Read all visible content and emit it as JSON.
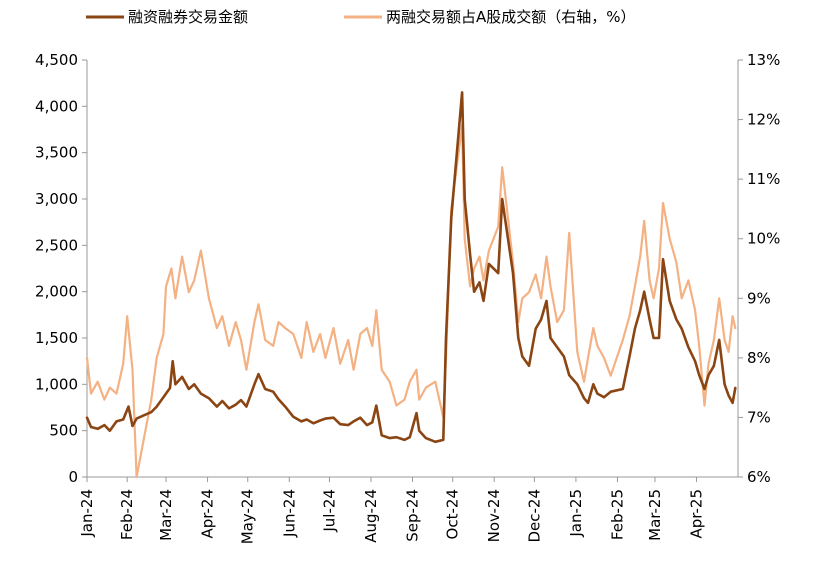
{
  "chart_data": {
    "type": "line",
    "title": "",
    "legend_position": "top",
    "series": [
      {
        "name": "融资融券交易金额",
        "axis": "left",
        "color": "#8B4513",
        "points": [
          [
            "2024-01-02",
            640
          ],
          [
            "2024-01-05",
            540
          ],
          [
            "2024-01-10",
            520
          ],
          [
            "2024-01-15",
            560
          ],
          [
            "2024-01-19",
            500
          ],
          [
            "2024-01-24",
            600
          ],
          [
            "2024-01-29",
            620
          ],
          [
            "2024-02-02",
            760
          ],
          [
            "2024-02-05",
            550
          ],
          [
            "2024-02-08",
            630
          ],
          [
            "2024-02-19",
            700
          ],
          [
            "2024-02-23",
            760
          ],
          [
            "2024-02-28",
            860
          ],
          [
            "2024-03-04",
            960
          ],
          [
            "2024-03-06",
            1250
          ],
          [
            "2024-03-08",
            1000
          ],
          [
            "2024-03-13",
            1080
          ],
          [
            "2024-03-18",
            950
          ],
          [
            "2024-03-22",
            1000
          ],
          [
            "2024-03-27",
            900
          ],
          [
            "2024-04-02",
            850
          ],
          [
            "2024-04-08",
            760
          ],
          [
            "2024-04-12",
            820
          ],
          [
            "2024-04-17",
            740
          ],
          [
            "2024-04-22",
            780
          ],
          [
            "2024-04-26",
            830
          ],
          [
            "2024-04-30",
            760
          ],
          [
            "2024-05-06",
            1000
          ],
          [
            "2024-05-09",
            1110
          ],
          [
            "2024-05-14",
            950
          ],
          [
            "2024-05-20",
            920
          ],
          [
            "2024-05-24",
            840
          ],
          [
            "2024-05-29",
            760
          ],
          [
            "2024-06-04",
            650
          ],
          [
            "2024-06-10",
            600
          ],
          [
            "2024-06-14",
            620
          ],
          [
            "2024-06-19",
            580
          ],
          [
            "2024-06-24",
            610
          ],
          [
            "2024-06-28",
            630
          ],
          [
            "2024-07-04",
            640
          ],
          [
            "2024-07-09",
            570
          ],
          [
            "2024-07-15",
            560
          ],
          [
            "2024-07-19",
            600
          ],
          [
            "2024-07-24",
            640
          ],
          [
            "2024-07-29",
            560
          ],
          [
            "2024-08-02",
            590
          ],
          [
            "2024-08-05",
            770
          ],
          [
            "2024-08-09",
            450
          ],
          [
            "2024-08-15",
            420
          ],
          [
            "2024-08-20",
            430
          ],
          [
            "2024-08-26",
            400
          ],
          [
            "2024-08-30",
            430
          ],
          [
            "2024-09-04",
            690
          ],
          [
            "2024-09-06",
            500
          ],
          [
            "2024-09-11",
            420
          ],
          [
            "2024-09-18",
            380
          ],
          [
            "2024-09-24",
            400
          ],
          [
            "2024-09-26",
            1500
          ],
          [
            "2024-09-30",
            2800
          ],
          [
            "2024-10-08",
            4150
          ],
          [
            "2024-10-10",
            3000
          ],
          [
            "2024-10-14",
            2400
          ],
          [
            "2024-10-17",
            2000
          ],
          [
            "2024-10-21",
            2100
          ],
          [
            "2024-10-24",
            1900
          ],
          [
            "2024-10-28",
            2300
          ],
          [
            "2024-11-04",
            2200
          ],
          [
            "2024-11-07",
            3000
          ],
          [
            "2024-11-11",
            2600
          ],
          [
            "2024-11-15",
            2200
          ],
          [
            "2024-11-19",
            1500
          ],
          [
            "2024-11-22",
            1300
          ],
          [
            "2024-11-27",
            1200
          ],
          [
            "2024-12-02",
            1600
          ],
          [
            "2024-12-06",
            1700
          ],
          [
            "2024-12-10",
            1900
          ],
          [
            "2024-12-13",
            1500
          ],
          [
            "2024-12-18",
            1400
          ],
          [
            "2024-12-23",
            1300
          ],
          [
            "2024-12-27",
            1100
          ],
          [
            "2025-01-02",
            1000
          ],
          [
            "2025-01-07",
            850
          ],
          [
            "2025-01-10",
            800
          ],
          [
            "2025-01-14",
            1000
          ],
          [
            "2025-01-17",
            900
          ],
          [
            "2025-01-22",
            860
          ],
          [
            "2025-01-27",
            920
          ],
          [
            "2025-02-05",
            950
          ],
          [
            "2025-02-10",
            1300
          ],
          [
            "2025-02-14",
            1600
          ],
          [
            "2025-02-18",
            1800
          ],
          [
            "2025-02-21",
            2000
          ],
          [
            "2025-02-25",
            1700
          ],
          [
            "2025-02-28",
            1500
          ],
          [
            "2025-03-04",
            1500
          ],
          [
            "2025-03-07",
            2350
          ],
          [
            "2025-03-12",
            1900
          ],
          [
            "2025-03-17",
            1700
          ],
          [
            "2025-03-21",
            1600
          ],
          [
            "2025-03-26",
            1400
          ],
          [
            "2025-03-31",
            1250
          ],
          [
            "2025-04-03",
            1100
          ],
          [
            "2025-04-07",
            950
          ],
          [
            "2025-04-10",
            1100
          ],
          [
            "2025-04-14",
            1200
          ],
          [
            "2025-04-18",
            1480
          ],
          [
            "2025-04-22",
            1000
          ],
          [
            "2025-04-25",
            880
          ],
          [
            "2025-04-28",
            800
          ],
          [
            "2025-04-30",
            960
          ]
        ]
      },
      {
        "name": "两融交易额占A股成交额（右轴，%）",
        "axis": "right",
        "color": "#F4B183",
        "points": [
          [
            "2024-01-02",
            8.0
          ],
          [
            "2024-01-05",
            7.4
          ],
          [
            "2024-01-10",
            7.6
          ],
          [
            "2024-01-15",
            7.3
          ],
          [
            "2024-01-19",
            7.5
          ],
          [
            "2024-01-24",
            7.4
          ],
          [
            "2024-01-29",
            7.9
          ],
          [
            "2024-02-01",
            8.7
          ],
          [
            "2024-02-05",
            7.8
          ],
          [
            "2024-02-08",
            6.0
          ],
          [
            "2024-02-19",
            7.3
          ],
          [
            "2024-02-23",
            8.0
          ],
          [
            "2024-02-28",
            8.4
          ],
          [
            "2024-03-01",
            9.2
          ],
          [
            "2024-03-05",
            9.5
          ],
          [
            "2024-03-08",
            9.0
          ],
          [
            "2024-03-13",
            9.7
          ],
          [
            "2024-03-18",
            9.1
          ],
          [
            "2024-03-22",
            9.3
          ],
          [
            "2024-03-27",
            9.8
          ],
          [
            "2024-04-02",
            9.0
          ],
          [
            "2024-04-08",
            8.5
          ],
          [
            "2024-04-12",
            8.7
          ],
          [
            "2024-04-17",
            8.2
          ],
          [
            "2024-04-22",
            8.6
          ],
          [
            "2024-04-26",
            8.3
          ],
          [
            "2024-04-30",
            7.8
          ],
          [
            "2024-05-06",
            8.6
          ],
          [
            "2024-05-09",
            8.9
          ],
          [
            "2024-05-14",
            8.3
          ],
          [
            "2024-05-20",
            8.2
          ],
          [
            "2024-05-24",
            8.6
          ],
          [
            "2024-05-29",
            8.5
          ],
          [
            "2024-06-04",
            8.4
          ],
          [
            "2024-06-10",
            8.0
          ],
          [
            "2024-06-14",
            8.6
          ],
          [
            "2024-06-19",
            8.1
          ],
          [
            "2024-06-24",
            8.4
          ],
          [
            "2024-06-28",
            8.0
          ],
          [
            "2024-07-04",
            8.5
          ],
          [
            "2024-07-09",
            7.9
          ],
          [
            "2024-07-15",
            8.3
          ],
          [
            "2024-07-19",
            7.8
          ],
          [
            "2024-07-24",
            8.4
          ],
          [
            "2024-07-29",
            8.5
          ],
          [
            "2024-08-02",
            8.2
          ],
          [
            "2024-08-05",
            8.8
          ],
          [
            "2024-08-09",
            7.8
          ],
          [
            "2024-08-15",
            7.6
          ],
          [
            "2024-08-20",
            7.2
          ],
          [
            "2024-08-26",
            7.3
          ],
          [
            "2024-08-30",
            7.6
          ],
          [
            "2024-09-04",
            7.8
          ],
          [
            "2024-09-06",
            7.3
          ],
          [
            "2024-09-11",
            7.5
          ],
          [
            "2024-09-18",
            7.6
          ],
          [
            "2024-09-24",
            7.0
          ],
          [
            "2024-09-26",
            8.0
          ],
          [
            "2024-09-30",
            10.5
          ],
          [
            "2024-10-08",
            11.9
          ],
          [
            "2024-10-10",
            10.0
          ],
          [
            "2024-10-14",
            9.2
          ],
          [
            "2024-10-17",
            9.5
          ],
          [
            "2024-10-21",
            9.7
          ],
          [
            "2024-10-24",
            9.3
          ],
          [
            "2024-10-28",
            9.8
          ],
          [
            "2024-11-04",
            10.2
          ],
          [
            "2024-11-07",
            11.2
          ],
          [
            "2024-11-11",
            10.4
          ],
          [
            "2024-11-15",
            9.6
          ],
          [
            "2024-11-19",
            8.6
          ],
          [
            "2024-11-22",
            9.0
          ],
          [
            "2024-11-27",
            9.1
          ],
          [
            "2024-12-02",
            9.4
          ],
          [
            "2024-12-06",
            9.0
          ],
          [
            "2024-12-10",
            9.7
          ],
          [
            "2024-12-13",
            9.2
          ],
          [
            "2024-12-18",
            8.6
          ],
          [
            "2024-12-23",
            8.8
          ],
          [
            "2024-12-27",
            10.1
          ],
          [
            "2025-01-02",
            8.1
          ],
          [
            "2025-01-07",
            7.6
          ],
          [
            "2025-01-10",
            8.0
          ],
          [
            "2025-01-14",
            8.5
          ],
          [
            "2025-01-17",
            8.2
          ],
          [
            "2025-01-22",
            8.0
          ],
          [
            "2025-01-27",
            7.7
          ],
          [
            "2025-02-05",
            8.3
          ],
          [
            "2025-02-10",
            8.7
          ],
          [
            "2025-02-14",
            9.2
          ],
          [
            "2025-02-18",
            9.7
          ],
          [
            "2025-02-21",
            10.3
          ],
          [
            "2025-02-25",
            9.3
          ],
          [
            "2025-02-28",
            9.0
          ],
          [
            "2025-03-04",
            9.5
          ],
          [
            "2025-03-07",
            10.6
          ],
          [
            "2025-03-12",
            10.0
          ],
          [
            "2025-03-17",
            9.6
          ],
          [
            "2025-03-21",
            9.0
          ],
          [
            "2025-03-26",
            9.3
          ],
          [
            "2025-03-31",
            8.8
          ],
          [
            "2025-04-03",
            8.2
          ],
          [
            "2025-04-07",
            7.2
          ],
          [
            "2025-04-10",
            7.9
          ],
          [
            "2025-04-14",
            8.3
          ],
          [
            "2025-04-18",
            9.0
          ],
          [
            "2025-04-22",
            8.3
          ],
          [
            "2025-04-25",
            8.1
          ],
          [
            "2025-04-28",
            8.7
          ],
          [
            "2025-04-30",
            8.5
          ]
        ]
      }
    ],
    "y_left": {
      "min": 0,
      "max": 4500,
      "ticks": [
        0,
        500,
        1000,
        1500,
        2000,
        2500,
        3000,
        3500,
        4000,
        4500
      ],
      "tick_labels": [
        "0",
        "500",
        "1,000",
        "1,500",
        "2,000",
        "2,500",
        "3,000",
        "3,500",
        "4,000",
        "4,500"
      ]
    },
    "y_right": {
      "min": 6,
      "max": 13,
      "ticks": [
        6,
        7,
        8,
        9,
        10,
        11,
        12,
        13
      ],
      "tick_labels": [
        "6%",
        "7%",
        "8%",
        "9%",
        "10%",
        "11%",
        "12%",
        "13%"
      ]
    },
    "x_axis": {
      "min": "2024-01-02",
      "max": "2025-05-02",
      "ticks": [
        "2024-01-02",
        "2024-02-01",
        "2024-03-01",
        "2024-04-01",
        "2024-05-01",
        "2024-06-01",
        "2024-07-01",
        "2024-08-01",
        "2024-09-01",
        "2024-10-01",
        "2024-11-01",
        "2024-12-01",
        "2025-01-01",
        "2025-02-01",
        "2025-03-01",
        "2025-04-01"
      ],
      "tick_labels": [
        "Jan-24",
        "Feb-24",
        "Mar-24",
        "Apr-24",
        "May-24",
        "Jun-24",
        "Jul-24",
        "Aug-24",
        "Sep-24",
        "Oct-24",
        "Nov-24",
        "Dec-24",
        "Jan-25",
        "Feb-25",
        "Mar-25",
        "Apr-25"
      ]
    },
    "grid": false
  }
}
